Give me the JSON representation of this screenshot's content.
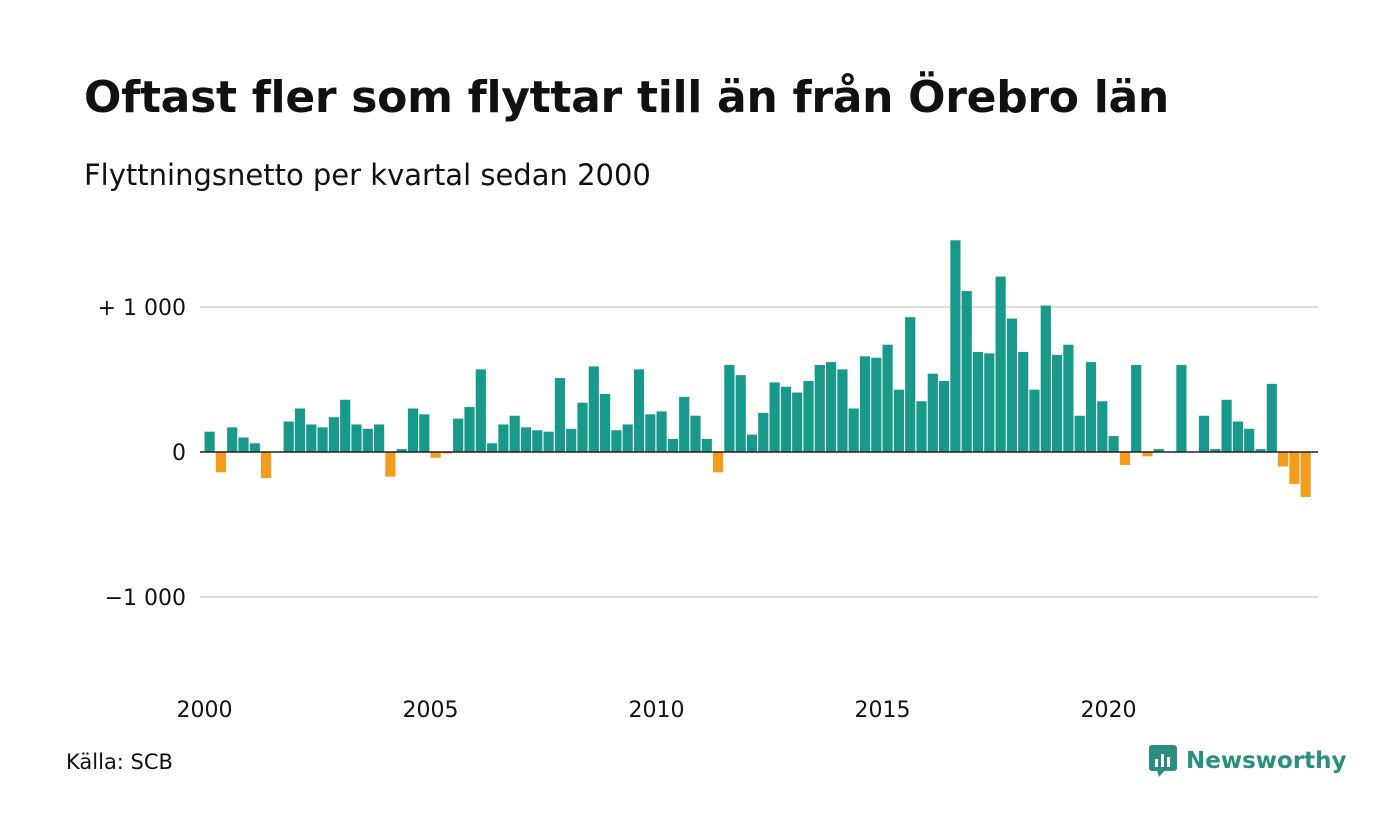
{
  "title": "Oftast fler som flyttar till än från Örebro län",
  "subtitle": "Flyttningsnetto per kvartal sedan 2000",
  "source": "Källa: SCB",
  "brand": {
    "name": "Newsworthy",
    "icon": "newsworthy-logo-icon",
    "color": "#2a8f80"
  },
  "colors": {
    "positive": "#18998a",
    "negative": "#f49c1e",
    "grid": "#dddddd",
    "zero_line": "#222222"
  },
  "chart_data": {
    "type": "bar",
    "title": "Oftast fler som flyttar till än från Örebro län",
    "subtitle": "Flyttningsnetto per kvartal sedan 2000",
    "xlabel": "",
    "ylabel": "",
    "ylim": [
      -1500,
      1500
    ],
    "y_ticks": [
      {
        "value": 1000,
        "label": "+ 1 000"
      },
      {
        "value": 0,
        "label": "0"
      },
      {
        "value": -1000,
        "label": "−1 000"
      }
    ],
    "x_ticks": [
      {
        "value": 2000,
        "label": "2000"
      },
      {
        "value": 2005,
        "label": "2005"
      },
      {
        "value": 2010,
        "label": "2010"
      },
      {
        "value": 2015,
        "label": "2015"
      },
      {
        "value": 2020,
        "label": "2020"
      }
    ],
    "grid": true,
    "start_year": 2000,
    "values": [
      140,
      -140,
      170,
      100,
      60,
      -180,
      0,
      210,
      300,
      190,
      170,
      240,
      360,
      190,
      160,
      190,
      -170,
      20,
      300,
      260,
      -40,
      -10,
      230,
      310,
      570,
      60,
      190,
      250,
      170,
      150,
      140,
      510,
      160,
      340,
      590,
      400,
      150,
      190,
      570,
      260,
      280,
      90,
      380,
      250,
      90,
      -140,
      600,
      530,
      120,
      270,
      480,
      450,
      410,
      490,
      600,
      620,
      570,
      300,
      660,
      650,
      740,
      430,
      930,
      350,
      540,
      490,
      1460,
      1110,
      690,
      680,
      1210,
      920,
      690,
      430,
      1010,
      670,
      740,
      250,
      620,
      350,
      110,
      -90,
      600,
      -30,
      20,
      0,
      600,
      0,
      250,
      20,
      360,
      210,
      160,
      20,
      470,
      -100,
      -220,
      -310
    ]
  }
}
